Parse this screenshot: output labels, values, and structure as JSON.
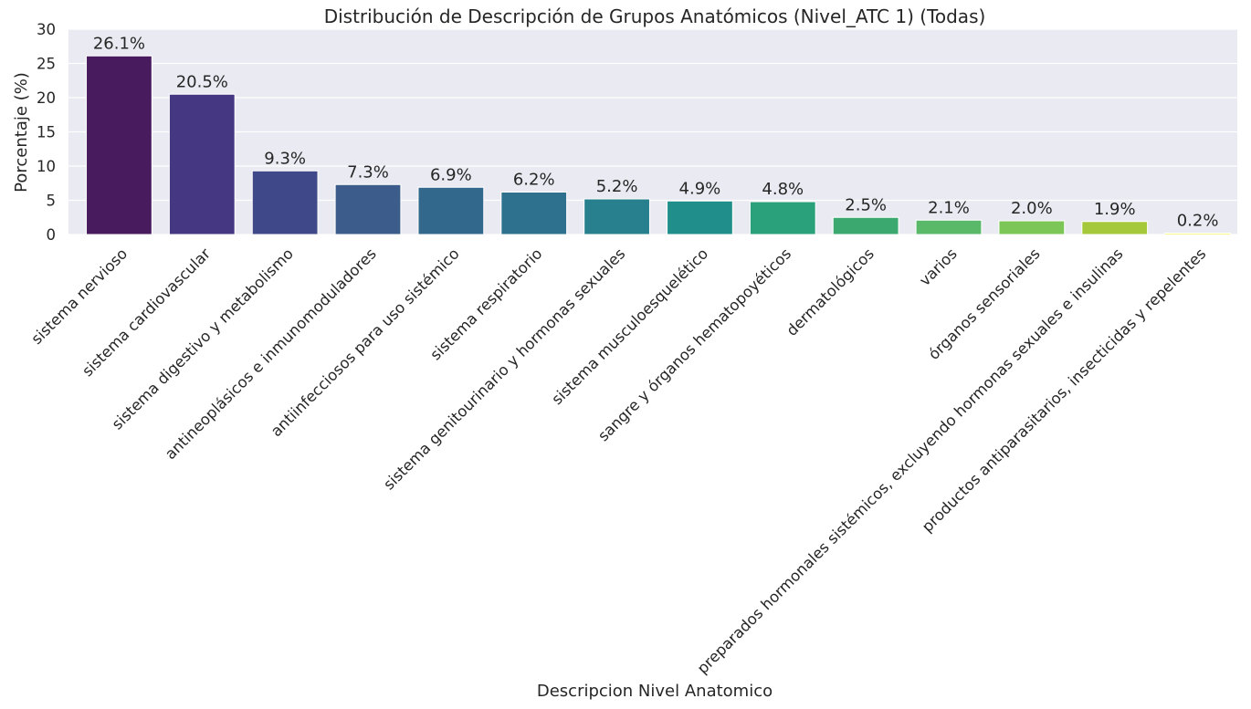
{
  "chart_data": {
    "type": "bar",
    "title": "Distribución de Descripción de Grupos Anatómicos (Nivel_ATC 1) (Todas)",
    "xlabel": "Descripcion Nivel Anatomico",
    "ylabel": "Porcentaje (%)",
    "ylim": [
      0,
      30
    ],
    "yticks": [
      0,
      5,
      10,
      15,
      20,
      25,
      30
    ],
    "grid": true,
    "categories": [
      "sistema nervioso",
      "sistema cardiovascular",
      "sistema digestivo y metabolismo",
      "antineoplásicos e inmunomoduladores",
      "antiinfecciosos para uso sistémico",
      "sistema respiratorio",
      "sistema genitourinario y hormonas sexuales",
      "sistema musculoesquelético",
      "sangre y órganos hematopoyéticos",
      "dermatológicos",
      "varios",
      "órganos sensoriales",
      "preparados hormonales sistémicos, excluyendo hormonas sexuales e insulinas",
      "productos antiparasitarios, insecticidas y repelentes"
    ],
    "values": [
      26.1,
      20.5,
      9.3,
      7.3,
      6.9,
      6.2,
      5.2,
      4.9,
      4.8,
      2.5,
      2.1,
      2.0,
      1.9,
      0.2
    ],
    "data_labels": [
      "26.1%",
      "20.5%",
      "9.3%",
      "7.3%",
      "6.9%",
      "6.2%",
      "5.2%",
      "4.9%",
      "4.8%",
      "2.5%",
      "2.1%",
      "2.0%",
      "1.9%",
      "0.2%"
    ],
    "colors": [
      "#481a5e",
      "#453781",
      "#3f4889",
      "#3c5c8c",
      "#33688d",
      "#2d718e",
      "#28808e",
      "#208f8c",
      "#2aa07b",
      "#3ba86f",
      "#5ab869",
      "#7cc657",
      "#a5c83a",
      "#f3ec1a"
    ],
    "plot_background": "#eaeaf2"
  }
}
